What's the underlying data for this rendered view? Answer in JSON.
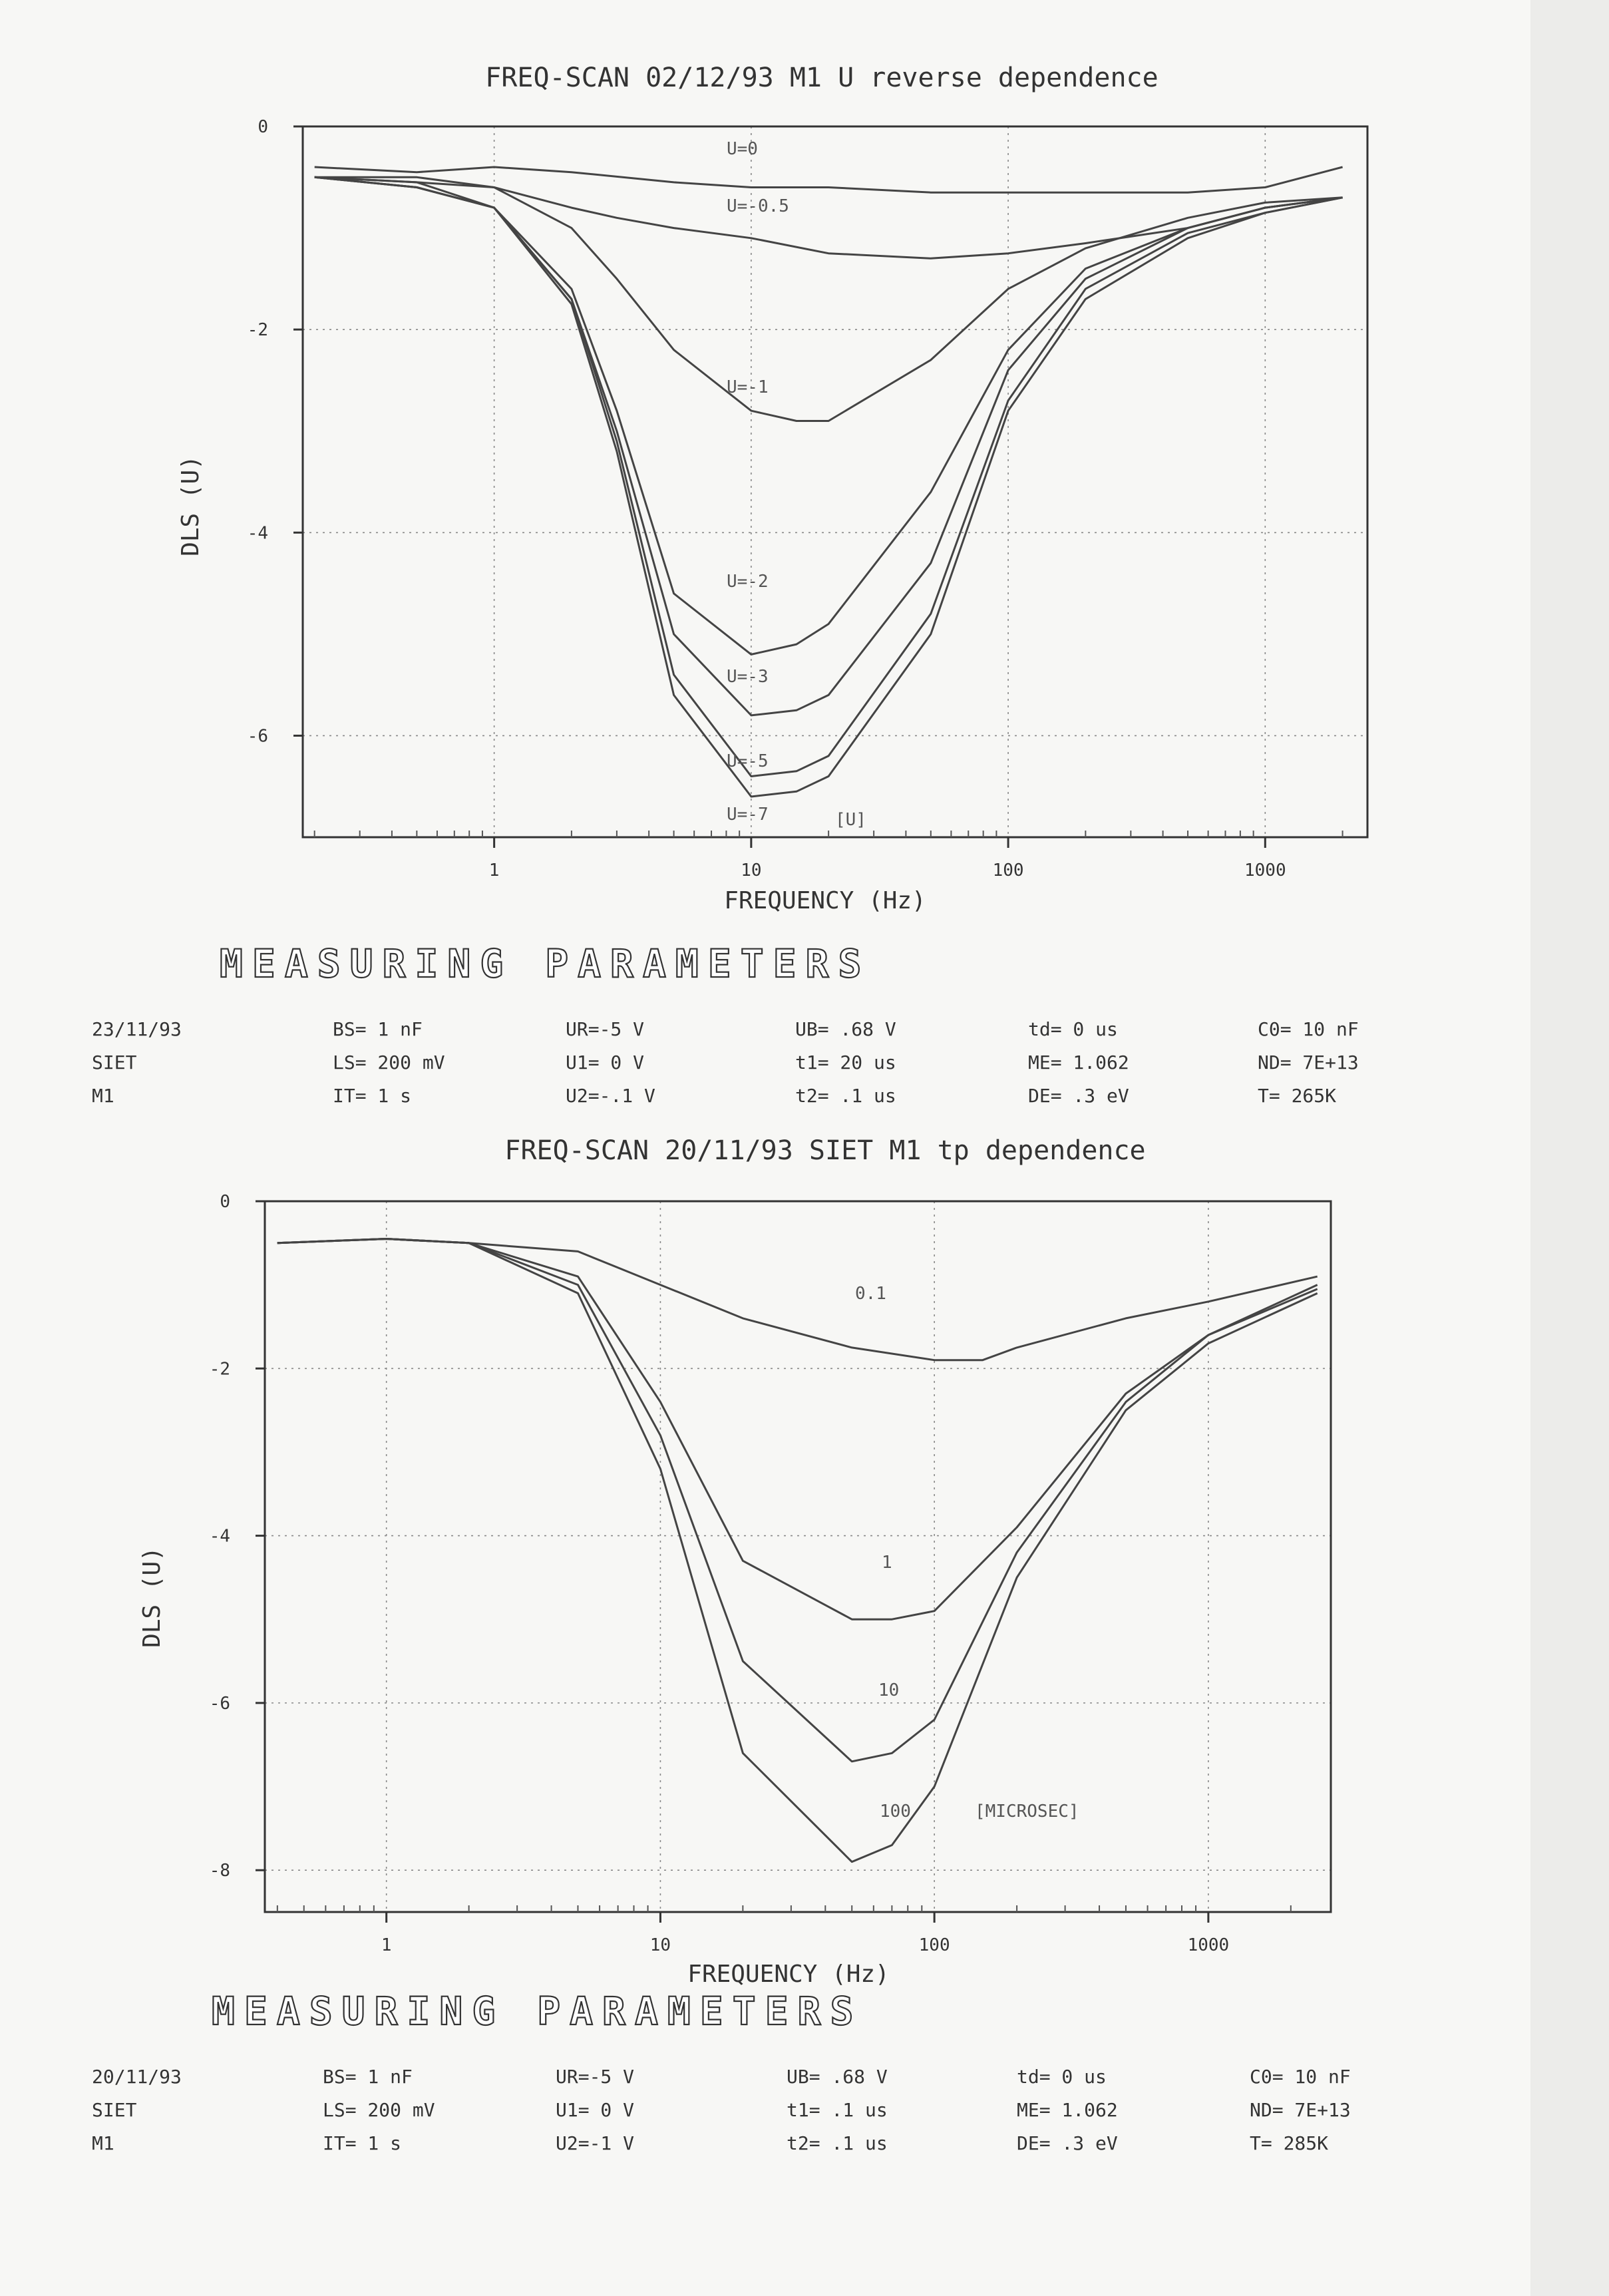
{
  "chart_data": [
    {
      "type": "line",
      "title": "FREQ-SCAN  02/12/93  M1  U reverse dependence",
      "xlabel": "FREQUENCY (Hz)",
      "ylabel": "DLS (U)",
      "x_scale": "log",
      "xlim": [
        0.18,
        2500
      ],
      "ylim": [
        -7.0,
        0
      ],
      "x_ticks": [
        1,
        10,
        100,
        1000
      ],
      "x_tick_labels": [
        "1",
        "10",
        "100",
        "1000"
      ],
      "y_ticks": [
        0,
        -2,
        -4,
        -6
      ],
      "y_tick_labels": [
        "0",
        "-2",
        "-4",
        "-6"
      ],
      "grid": true,
      "unit_annotation": "[U]",
      "series": [
        {
          "name": "U=0",
          "x": [
            0.2,
            0.5,
            1,
            2,
            5,
            10,
            20,
            50,
            100,
            200,
            500,
            1000,
            2000
          ],
          "y": [
            -0.4,
            -0.45,
            -0.4,
            -0.45,
            -0.55,
            -0.6,
            -0.6,
            -0.65,
            -0.65,
            -0.65,
            -0.65,
            -0.6,
            -0.4
          ]
        },
        {
          "name": "U=-0.5",
          "x": [
            0.2,
            0.5,
            1,
            2,
            3,
            5,
            10,
            20,
            50,
            100,
            200,
            500,
            1000,
            2000
          ],
          "y": [
            -0.5,
            -0.55,
            -0.6,
            -0.8,
            -0.9,
            -1.0,
            -1.1,
            -1.25,
            -1.3,
            -1.25,
            -1.15,
            -1.0,
            -0.8,
            -0.7
          ]
        },
        {
          "name": "U=-1",
          "x": [
            0.2,
            0.5,
            1,
            2,
            3,
            5,
            10,
            15,
            20,
            50,
            100,
            200,
            500,
            1000,
            2000
          ],
          "y": [
            -0.5,
            -0.5,
            -0.6,
            -1.0,
            -1.5,
            -2.2,
            -2.8,
            -2.9,
            -2.9,
            -2.3,
            -1.6,
            -1.2,
            -0.9,
            -0.75,
            -0.7
          ]
        },
        {
          "name": "U=-2",
          "x": [
            0.2,
            0.5,
            1,
            2,
            3,
            5,
            10,
            15,
            20,
            50,
            100,
            200,
            500,
            1000,
            2000
          ],
          "y": [
            -0.5,
            -0.55,
            -0.8,
            -1.6,
            -2.8,
            -4.6,
            -5.2,
            -5.1,
            -4.9,
            -3.6,
            -2.2,
            -1.4,
            -1.0,
            -0.8,
            -0.7
          ]
        },
        {
          "name": "U=-3",
          "x": [
            0.2,
            0.5,
            1,
            2,
            3,
            5,
            10,
            15,
            20,
            50,
            100,
            200,
            500,
            1000,
            2000
          ],
          "y": [
            -0.5,
            -0.6,
            -0.8,
            -1.7,
            -3.0,
            -5.0,
            -5.8,
            -5.75,
            -5.6,
            -4.3,
            -2.4,
            -1.5,
            -1.0,
            -0.8,
            -0.7
          ]
        },
        {
          "name": "U=-5",
          "x": [
            0.2,
            0.5,
            1,
            2,
            3,
            5,
            10,
            15,
            20,
            50,
            100,
            200,
            500,
            1000,
            2000
          ],
          "y": [
            -0.5,
            -0.6,
            -0.8,
            -1.7,
            -3.1,
            -5.4,
            -6.4,
            -6.35,
            -6.2,
            -4.8,
            -2.7,
            -1.6,
            -1.05,
            -0.85,
            -0.7
          ]
        },
        {
          "name": "U=-7",
          "x": [
            0.2,
            0.5,
            1,
            2,
            3,
            5,
            10,
            15,
            20,
            50,
            100,
            200,
            500,
            1000,
            2000
          ],
          "y": [
            -0.5,
            -0.6,
            -0.8,
            -1.75,
            -3.2,
            -5.6,
            -6.6,
            -6.55,
            -6.4,
            -5.0,
            -2.8,
            -1.7,
            -1.1,
            -0.85,
            -0.7
          ]
        }
      ]
    },
    {
      "type": "line",
      "title": "FREQ-SCAN    20/11/93   SIET  M1  tp dependence",
      "xlabel": "FREQUENCY (Hz)",
      "ylabel": "DLS (U)",
      "x_scale": "log",
      "xlim": [
        0.36,
        2800
      ],
      "ylim": [
        -8.5,
        0
      ],
      "x_ticks": [
        1,
        10,
        100,
        1000
      ],
      "x_tick_labels": [
        "1",
        "10",
        "100",
        "1000"
      ],
      "y_ticks": [
        0,
        -2,
        -4,
        -6,
        -8
      ],
      "y_tick_labels": [
        "0",
        "-2",
        "-4",
        "-6",
        "-8"
      ],
      "grid": true,
      "unit_annotation": "[MICROSEC]",
      "series": [
        {
          "name": "0.1",
          "x": [
            0.4,
            1,
            2,
            5,
            10,
            20,
            50,
            100,
            150,
            200,
            500,
            1000,
            2500
          ],
          "y": [
            -0.5,
            -0.45,
            -0.5,
            -0.6,
            -1.0,
            -1.4,
            -1.75,
            -1.9,
            -1.9,
            -1.75,
            -1.4,
            -1.2,
            -0.9
          ]
        },
        {
          "name": "1",
          "x": [
            0.4,
            1,
            2,
            5,
            10,
            20,
            50,
            70,
            100,
            200,
            500,
            1000,
            2500
          ],
          "y": [
            -0.5,
            -0.45,
            -0.5,
            -0.9,
            -2.4,
            -4.3,
            -5.0,
            -5.0,
            -4.9,
            -3.9,
            -2.3,
            -1.6,
            -1.0
          ]
        },
        {
          "name": "10",
          "x": [
            0.4,
            1,
            2,
            5,
            10,
            20,
            50,
            70,
            100,
            200,
            500,
            1000,
            2500
          ],
          "y": [
            -0.5,
            -0.45,
            -0.5,
            -1.0,
            -2.8,
            -5.5,
            -6.7,
            -6.6,
            -6.2,
            -4.2,
            -2.4,
            -1.6,
            -1.05
          ]
        },
        {
          "name": "100",
          "x": [
            0.4,
            1,
            2,
            5,
            10,
            20,
            50,
            70,
            100,
            200,
            500,
            1000,
            2500
          ],
          "y": [
            -0.5,
            -0.45,
            -0.5,
            -1.1,
            -3.2,
            -6.6,
            -7.9,
            -7.7,
            -7.0,
            -4.5,
            -2.5,
            -1.7,
            -1.1
          ]
        }
      ]
    }
  ],
  "parameters": [
    {
      "heading": "MEASURING  PARAMETERS",
      "columns": [
        [
          "23/11/93",
          "SIET",
          "M1"
        ],
        [
          "BS= 1 nF",
          "LS= 200 mV",
          "IT= 1 s"
        ],
        [
          "UR=-5 V",
          "U1= 0 V",
          "U2=-.1 V"
        ],
        [
          "UB= .68 V",
          "t1= 20 us",
          "t2= .1 us"
        ],
        [
          "td= 0 us",
          "ME= 1.062",
          "DE= .3 eV"
        ],
        [
          "C0= 10 nF",
          "ND= 7E+13",
          "T= 265K"
        ]
      ]
    },
    {
      "heading": "MEASURING  PARAMETERS",
      "columns": [
        [
          "20/11/93",
          "SIET",
          "M1"
        ],
        [
          "BS= 1 nF",
          "LS= 200 mV",
          "IT= 1 s"
        ],
        [
          "UR=-5 V",
          "U1= 0 V",
          "U2=-1 V"
        ],
        [
          "UB= .68 V",
          "t1= .1 us",
          "t2= .1 us"
        ],
        [
          "td= 0 us",
          "ME= 1.062",
          "DE= .3 eV"
        ],
        [
          "C0= 10 nF",
          "ND= 7E+13",
          "T= 285K"
        ]
      ]
    }
  ]
}
